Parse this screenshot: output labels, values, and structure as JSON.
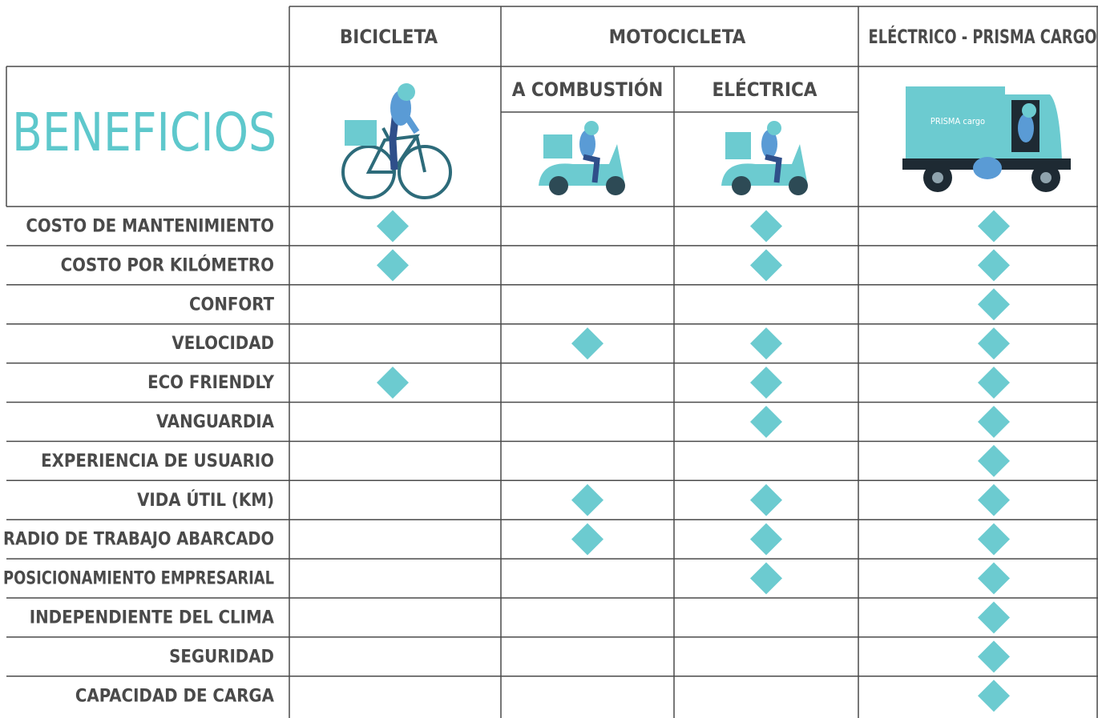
{
  "header": {
    "title": "BENEFICIOS",
    "columns": [
      {
        "label": "BICICLETA"
      },
      {
        "label": "MOTOCICLETA",
        "subcolumns": [
          "A COMBUSTIÓN",
          "ELÉCTRICA"
        ]
      },
      {
        "label": "ELÉCTRICO - PRISMA CARGO"
      }
    ],
    "logo": "PRISMA cargo"
  },
  "table": {
    "rows": [
      {
        "label": "COSTO DE MANTENIMIENTO",
        "marks": [
          true,
          false,
          true,
          true
        ]
      },
      {
        "label": "COSTO POR KILÓMETRO",
        "marks": [
          true,
          false,
          true,
          true
        ]
      },
      {
        "label": "CONFORT",
        "marks": [
          false,
          false,
          false,
          true
        ]
      },
      {
        "label": "VELOCIDAD",
        "marks": [
          false,
          true,
          true,
          true
        ]
      },
      {
        "label": "ECO FRIENDLY",
        "marks": [
          true,
          false,
          true,
          true
        ]
      },
      {
        "label": "VANGUARDIA",
        "marks": [
          false,
          false,
          true,
          true
        ]
      },
      {
        "label": "EXPERIENCIA DE USUARIO",
        "marks": [
          false,
          false,
          false,
          true
        ]
      },
      {
        "label": "VIDA ÚTIL (KM)",
        "marks": [
          false,
          true,
          true,
          true
        ]
      },
      {
        "label": "RADIO DE TRABAJO ABARCADO",
        "marks": [
          false,
          true,
          true,
          true
        ]
      },
      {
        "label": "POSICIONAMIENTO EMPRESARIAL",
        "marks": [
          false,
          false,
          true,
          true
        ]
      },
      {
        "label": "INDEPENDIENTE DEL CLIMA",
        "marks": [
          false,
          false,
          false,
          true
        ]
      },
      {
        "label": "SEGURIDAD",
        "marks": [
          false,
          false,
          false,
          true
        ]
      },
      {
        "label": "CAPACIDAD DE CARGA",
        "marks": [
          false,
          false,
          false,
          true
        ]
      }
    ]
  }
}
